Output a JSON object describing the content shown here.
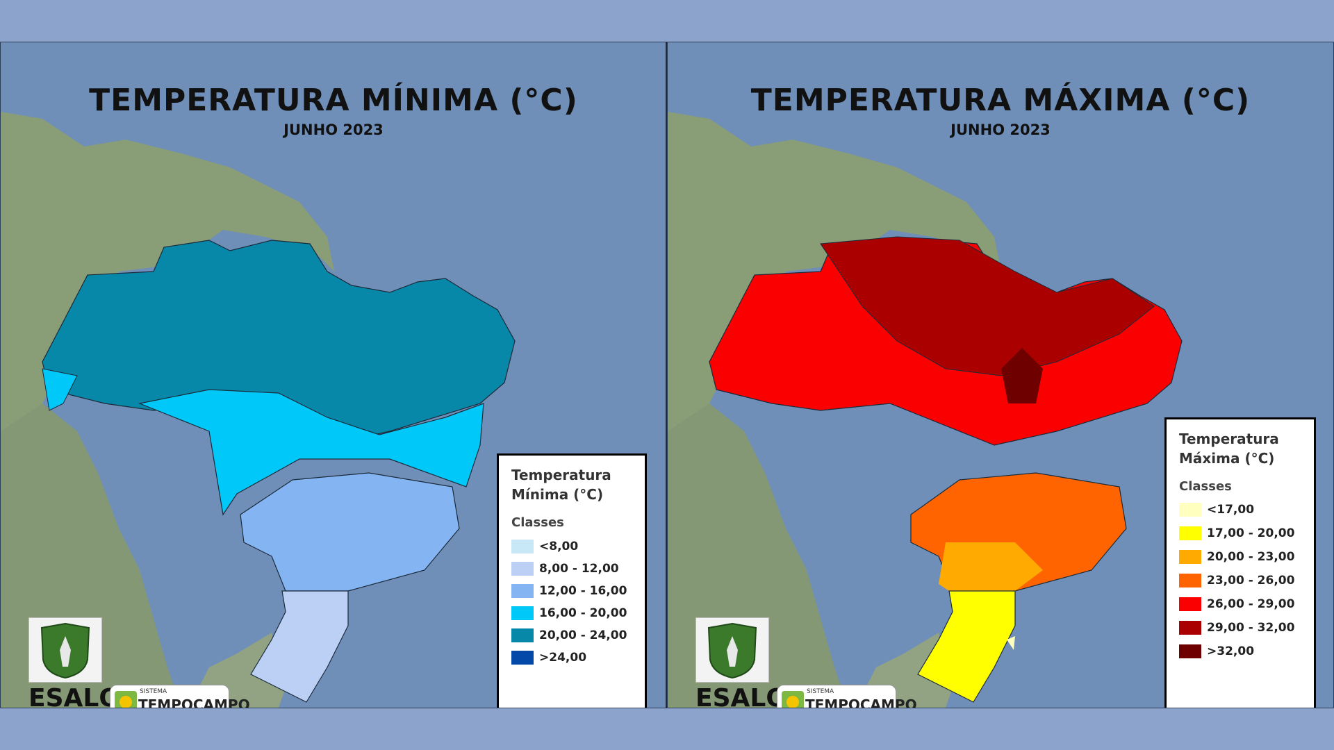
{
  "panels": {
    "min": {
      "title": "TEMPERATURA MÍNIMA (°C)",
      "subtitle": "JUNHO 2023",
      "legend": {
        "title_line1": "Temperatura",
        "title_line2": "Mínima (°C)",
        "classes_label": "Classes",
        "items": [
          {
            "label": "<8,00",
            "color": "#c8e8f8"
          },
          {
            "label": "8,00 - 12,00",
            "color": "#bcd0f5"
          },
          {
            "label": "12,00 - 16,00",
            "color": "#85b4f2"
          },
          {
            "label": "16,00 - 20,00",
            "color": "#00c8f8"
          },
          {
            "label": "20,00 - 24,00",
            "color": "#0888a8"
          },
          {
            "label": ">24,00",
            "color": "#0448a8"
          }
        ]
      }
    },
    "max": {
      "title": "TEMPERATURA MÁXIMA (°C)",
      "subtitle": "JUNHO 2023",
      "legend": {
        "title_line1": "Temperatura",
        "title_line2": "Máxima (°C)",
        "classes_label": "Classes",
        "items": [
          {
            "label": "<17,00",
            "color": "#ffffc0"
          },
          {
            "label": "17,00 - 20,00",
            "color": "#ffff00"
          },
          {
            "label": "20,00 - 23,00",
            "color": "#ffaa00"
          },
          {
            "label": "23,00 - 26,00",
            "color": "#ff6400"
          },
          {
            "label": "26,00 - 29,00",
            "color": "#fa0000"
          },
          {
            "label": "29,00 - 32,00",
            "color": "#aa0000"
          },
          {
            "label": ">32,00",
            "color": "#6e0000"
          }
        ]
      }
    }
  },
  "logos": {
    "esalq": "ESALQ",
    "tempocampo_small": "SISTEMA",
    "tempocampo": "TEMPOCAMPO"
  },
  "colors": {
    "ocean": "#6f8fb8",
    "land": "#8ea06a"
  }
}
